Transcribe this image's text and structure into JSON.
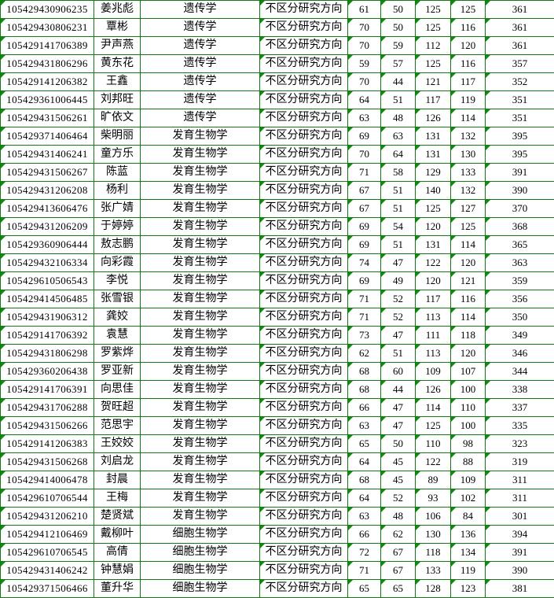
{
  "colors": {
    "border": "#177617",
    "triangle": "#0e8c0e"
  },
  "table": {
    "rows": [
      [
        "105429430906235",
        "姜兆彪",
        "遗传学",
        "不区分研究方向",
        "61",
        "50",
        "125",
        "125",
        "361"
      ],
      [
        "105429430806231",
        "覃彬",
        "遗传学",
        "不区分研究方向",
        "70",
        "50",
        "125",
        "116",
        "361"
      ],
      [
        "105429141706389",
        "尹声燕",
        "遗传学",
        "不区分研究方向",
        "70",
        "59",
        "112",
        "120",
        "361"
      ],
      [
        "105429431806296",
        "黄东花",
        "遗传学",
        "不区分研究方向",
        "59",
        "57",
        "125",
        "116",
        "357"
      ],
      [
        "105429141206382",
        "王鑫",
        "遗传学",
        "不区分研究方向",
        "70",
        "44",
        "121",
        "117",
        "352"
      ],
      [
        "105429361006445",
        "刘邦旺",
        "遗传学",
        "不区分研究方向",
        "64",
        "51",
        "117",
        "119",
        "351"
      ],
      [
        "105429431506261",
        "旷依文",
        "遗传学",
        "不区分研究方向",
        "63",
        "48",
        "126",
        "114",
        "351"
      ],
      [
        "105429371406464",
        "柴明丽",
        "发育生物学",
        "不区分研究方向",
        "69",
        "63",
        "131",
        "132",
        "395"
      ],
      [
        "105429431406241",
        "童方乐",
        "发育生物学",
        "不区分研究方向",
        "70",
        "64",
        "131",
        "130",
        "395"
      ],
      [
        "105429431506267",
        "陈蓝",
        "发育生物学",
        "不区分研究方向",
        "71",
        "58",
        "129",
        "133",
        "391"
      ],
      [
        "105429431206208",
        "杨利",
        "发育生物学",
        "不区分研究方向",
        "67",
        "51",
        "140",
        "132",
        "390"
      ],
      [
        "105429413606476",
        "张广婧",
        "发育生物学",
        "不区分研究方向",
        "67",
        "51",
        "125",
        "127",
        "370"
      ],
      [
        "105429431206209",
        "于婷婷",
        "发育生物学",
        "不区分研究方向",
        "69",
        "54",
        "120",
        "125",
        "368"
      ],
      [
        "105429360906444",
        "敖志鹏",
        "发育生物学",
        "不区分研究方向",
        "69",
        "51",
        "131",
        "114",
        "365"
      ],
      [
        "105429432106334",
        "向彩霞",
        "发育生物学",
        "不区分研究方向",
        "74",
        "47",
        "122",
        "120",
        "363"
      ],
      [
        "105429610506543",
        "李悦",
        "发育生物学",
        "不区分研究方向",
        "69",
        "49",
        "120",
        "121",
        "359"
      ],
      [
        "105429414506485",
        "张雪银",
        "发育生物学",
        "不区分研究方向",
        "71",
        "52",
        "117",
        "116",
        "356"
      ],
      [
        "105429431906312",
        "龚姣",
        "发育生物学",
        "不区分研究方向",
        "71",
        "52",
        "113",
        "114",
        "350"
      ],
      [
        "105429141706392",
        "袁慧",
        "发育生物学",
        "不区分研究方向",
        "73",
        "47",
        "111",
        "118",
        "349"
      ],
      [
        "105429431806298",
        "罗紫烨",
        "发育生物学",
        "不区分研究方向",
        "62",
        "51",
        "113",
        "120",
        "346"
      ],
      [
        "105429360206438",
        "罗亚新",
        "发育生物学",
        "不区分研究方向",
        "68",
        "60",
        "109",
        "107",
        "344"
      ],
      [
        "105429141706391",
        "向思佳",
        "发育生物学",
        "不区分研究方向",
        "68",
        "44",
        "126",
        "100",
        "338"
      ],
      [
        "105429431706288",
        "贺旺超",
        "发育生物学",
        "不区分研究方向",
        "66",
        "47",
        "114",
        "110",
        "337"
      ],
      [
        "105429431506266",
        "范思宇",
        "发育生物学",
        "不区分研究方向",
        "63",
        "47",
        "125",
        "100",
        "335"
      ],
      [
        "105429141206383",
        "王姣姣",
        "发育生物学",
        "不区分研究方向",
        "65",
        "50",
        "110",
        "98",
        "323"
      ],
      [
        "105429431506268",
        "刘启龙",
        "发育生物学",
        "不区分研究方向",
        "64",
        "45",
        "122",
        "88",
        "319"
      ],
      [
        "105429414006478",
        "封晨",
        "发育生物学",
        "不区分研究方向",
        "68",
        "45",
        "89",
        "109",
        "311"
      ],
      [
        "105429610706544",
        "王梅",
        "发育生物学",
        "不区分研究方向",
        "64",
        "52",
        "93",
        "102",
        "311"
      ],
      [
        "105429431206210",
        "楚贤斌",
        "发育生物学",
        "不区分研究方向",
        "63",
        "48",
        "106",
        "84",
        "301"
      ],
      [
        "105429412106469",
        "戴柳叶",
        "细胞生物学",
        "不区分研究方向",
        "66",
        "62",
        "130",
        "136",
        "394"
      ],
      [
        "105429610706545",
        "高倩",
        "细胞生物学",
        "不区分研究方向",
        "72",
        "67",
        "118",
        "134",
        "391"
      ],
      [
        "105429431406242",
        "钟慧娟",
        "细胞生物学",
        "不区分研究方向",
        "71",
        "67",
        "133",
        "119",
        "390"
      ],
      [
        "105429371506466",
        "董升华",
        "细胞生物学",
        "不区分研究方向",
        "65",
        "65",
        "128",
        "123",
        "381"
      ]
    ]
  }
}
